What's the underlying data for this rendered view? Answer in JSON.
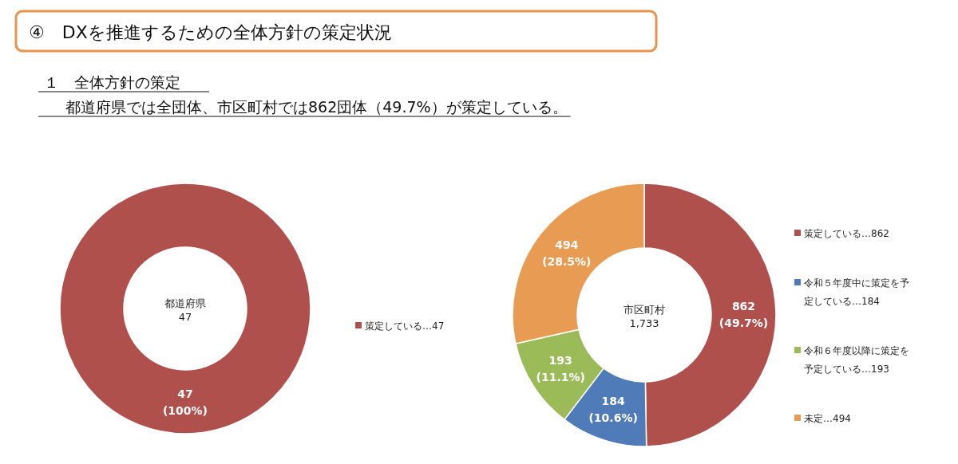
{
  "chart_data": [
    {
      "type": "other",
      "title": "④　DXを推進するための全体方針の策定状況",
      "subtitle": "１　全体方針の策定",
      "annotations": [
        "都道府県では全団体、市区町村では862団体（49.7%）が策定している。"
      ]
    },
    {
      "type": "donut",
      "title": "都道府県",
      "subtitle": "47",
      "categories": [
        "策定している…47"
      ],
      "values": [
        47
      ],
      "colors": [
        "#b0504d"
      ],
      "value_labels": [
        "47 (100%)"
      ],
      "legend": "right"
    },
    {
      "type": "donut",
      "title": "市区町村",
      "subtitle": "1,733",
      "categories": [
        "策定している…862",
        "令和５年度中に策定を予定している…184",
        "令和６年度以降に策定を予定している…193",
        "未定…494"
      ],
      "values": [
        862,
        184,
        193,
        494
      ],
      "colors": [
        "#b0504d",
        "#4f7cb8",
        "#9bbb59",
        "#e89b52"
      ],
      "value_labels": [
        "862 (49.7%)",
        "184 (10.6%)",
        "193 (11.1%)",
        "494 (28.5%)"
      ],
      "legend": "right"
    }
  ]
}
